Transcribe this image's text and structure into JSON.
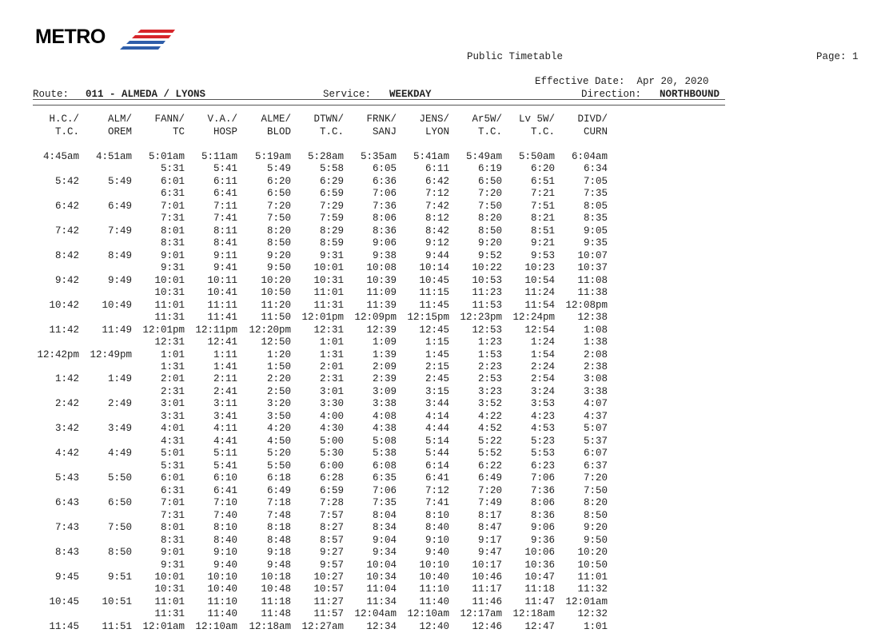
{
  "logo": {
    "text": "METRO"
  },
  "header": {
    "title": "Public Timetable",
    "page_label": "Page:",
    "page_number": "1",
    "effective_label": "Effective Date:",
    "effective_date": "Apr 20, 2020",
    "route_label": "Route:",
    "route_value": "011 - ALMEDA / LYONS",
    "service_label": "Service:",
    "service_value": "WEEKDAY",
    "direction_label": "Direction:",
    "direction_value": "NORTHBOUND"
  },
  "columns": [
    {
      "l1": "H.C./",
      "l2": "T.C."
    },
    {
      "l1": "ALM/",
      "l2": "OREM"
    },
    {
      "l1": "FANN/",
      "l2": "TC"
    },
    {
      "l1": "V.A./",
      "l2": "HOSP"
    },
    {
      "l1": "ALME/",
      "l2": "BLOD"
    },
    {
      "l1": "DTWN/",
      "l2": "T.C."
    },
    {
      "l1": "FRNK/",
      "l2": "SANJ"
    },
    {
      "l1": "JENS/",
      "l2": "LYON"
    },
    {
      "l1": "Ar5W/",
      "l2": "T.C."
    },
    {
      "l1": "Lv 5W/",
      "l2": "T.C."
    },
    {
      "l1": "DIVD/",
      "l2": "CURN"
    }
  ],
  "rows": [
    [
      "4:45am",
      "4:51am",
      "5:01am",
      "5:11am",
      "5:19am",
      "5:28am",
      "5:35am",
      "5:41am",
      "5:49am",
      "5:50am",
      "6:04am"
    ],
    [
      "",
      "",
      "5:31",
      "5:41",
      "5:49",
      "5:58",
      "6:05",
      "6:11",
      "6:19",
      "6:20",
      "6:34"
    ],
    [
      "5:42",
      "5:49",
      "6:01",
      "6:11",
      "6:20",
      "6:29",
      "6:36",
      "6:42",
      "6:50",
      "6:51",
      "7:05"
    ],
    [
      "",
      "",
      "6:31",
      "6:41",
      "6:50",
      "6:59",
      "7:06",
      "7:12",
      "7:20",
      "7:21",
      "7:35"
    ],
    [
      "6:42",
      "6:49",
      "7:01",
      "7:11",
      "7:20",
      "7:29",
      "7:36",
      "7:42",
      "7:50",
      "7:51",
      "8:05"
    ],
    [
      "",
      "",
      "7:31",
      "7:41",
      "7:50",
      "7:59",
      "8:06",
      "8:12",
      "8:20",
      "8:21",
      "8:35"
    ],
    [
      "7:42",
      "7:49",
      "8:01",
      "8:11",
      "8:20",
      "8:29",
      "8:36",
      "8:42",
      "8:50",
      "8:51",
      "9:05"
    ],
    [
      "",
      "",
      "8:31",
      "8:41",
      "8:50",
      "8:59",
      "9:06",
      "9:12",
      "9:20",
      "9:21",
      "9:35"
    ],
    [
      "8:42",
      "8:49",
      "9:01",
      "9:11",
      "9:20",
      "9:31",
      "9:38",
      "9:44",
      "9:52",
      "9:53",
      "10:07"
    ],
    [
      "",
      "",
      "9:31",
      "9:41",
      "9:50",
      "10:01",
      "10:08",
      "10:14",
      "10:22",
      "10:23",
      "10:37"
    ],
    [
      "9:42",
      "9:49",
      "10:01",
      "10:11",
      "10:20",
      "10:31",
      "10:39",
      "10:45",
      "10:53",
      "10:54",
      "11:08"
    ],
    [
      "",
      "",
      "10:31",
      "10:41",
      "10:50",
      "11:01",
      "11:09",
      "11:15",
      "11:23",
      "11:24",
      "11:38"
    ],
    [
      "10:42",
      "10:49",
      "11:01",
      "11:11",
      "11:20",
      "11:31",
      "11:39",
      "11:45",
      "11:53",
      "11:54",
      "12:08pm"
    ],
    [
      "",
      "",
      "11:31",
      "11:41",
      "11:50",
      "12:01pm",
      "12:09pm",
      "12:15pm",
      "12:23pm",
      "12:24pm",
      "12:38"
    ],
    [
      "11:42",
      "11:49",
      "12:01pm",
      "12:11pm",
      "12:20pm",
      "12:31",
      "12:39",
      "12:45",
      "12:53",
      "12:54",
      "1:08"
    ],
    [
      "",
      "",
      "12:31",
      "12:41",
      "12:50",
      "1:01",
      "1:09",
      "1:15",
      "1:23",
      "1:24",
      "1:38"
    ],
    [
      "12:42pm",
      "12:49pm",
      "1:01",
      "1:11",
      "1:20",
      "1:31",
      "1:39",
      "1:45",
      "1:53",
      "1:54",
      "2:08"
    ],
    [
      "",
      "",
      "1:31",
      "1:41",
      "1:50",
      "2:01",
      "2:09",
      "2:15",
      "2:23",
      "2:24",
      "2:38"
    ],
    [
      "1:42",
      "1:49",
      "2:01",
      "2:11",
      "2:20",
      "2:31",
      "2:39",
      "2:45",
      "2:53",
      "2:54",
      "3:08"
    ],
    [
      "",
      "",
      "2:31",
      "2:41",
      "2:50",
      "3:01",
      "3:09",
      "3:15",
      "3:23",
      "3:24",
      "3:38"
    ],
    [
      "2:42",
      "2:49",
      "3:01",
      "3:11",
      "3:20",
      "3:30",
      "3:38",
      "3:44",
      "3:52",
      "3:53",
      "4:07"
    ],
    [
      "",
      "",
      "3:31",
      "3:41",
      "3:50",
      "4:00",
      "4:08",
      "4:14",
      "4:22",
      "4:23",
      "4:37"
    ],
    [
      "3:42",
      "3:49",
      "4:01",
      "4:11",
      "4:20",
      "4:30",
      "4:38",
      "4:44",
      "4:52",
      "4:53",
      "5:07"
    ],
    [
      "",
      "",
      "4:31",
      "4:41",
      "4:50",
      "5:00",
      "5:08",
      "5:14",
      "5:22",
      "5:23",
      "5:37"
    ],
    [
      "4:42",
      "4:49",
      "5:01",
      "5:11",
      "5:20",
      "5:30",
      "5:38",
      "5:44",
      "5:52",
      "5:53",
      "6:07"
    ],
    [
      "",
      "",
      "5:31",
      "5:41",
      "5:50",
      "6:00",
      "6:08",
      "6:14",
      "6:22",
      "6:23",
      "6:37"
    ],
    [
      "5:43",
      "5:50",
      "6:01",
      "6:10",
      "6:18",
      "6:28",
      "6:35",
      "6:41",
      "6:49",
      "7:06",
      "7:20"
    ],
    [
      "",
      "",
      "6:31",
      "6:41",
      "6:49",
      "6:59",
      "7:06",
      "7:12",
      "7:20",
      "7:36",
      "7:50"
    ],
    [
      "6:43",
      "6:50",
      "7:01",
      "7:10",
      "7:18",
      "7:28",
      "7:35",
      "7:41",
      "7:49",
      "8:06",
      "8:20"
    ],
    [
      "",
      "",
      "7:31",
      "7:40",
      "7:48",
      "7:57",
      "8:04",
      "8:10",
      "8:17",
      "8:36",
      "8:50"
    ],
    [
      "7:43",
      "7:50",
      "8:01",
      "8:10",
      "8:18",
      "8:27",
      "8:34",
      "8:40",
      "8:47",
      "9:06",
      "9:20"
    ],
    [
      "",
      "",
      "8:31",
      "8:40",
      "8:48",
      "8:57",
      "9:04",
      "9:10",
      "9:17",
      "9:36",
      "9:50"
    ],
    [
      "8:43",
      "8:50",
      "9:01",
      "9:10",
      "9:18",
      "9:27",
      "9:34",
      "9:40",
      "9:47",
      "10:06",
      "10:20"
    ],
    [
      "",
      "",
      "9:31",
      "9:40",
      "9:48",
      "9:57",
      "10:04",
      "10:10",
      "10:17",
      "10:36",
      "10:50"
    ],
    [
      "9:45",
      "9:51",
      "10:01",
      "10:10",
      "10:18",
      "10:27",
      "10:34",
      "10:40",
      "10:46",
      "10:47",
      "11:01"
    ],
    [
      "",
      "",
      "10:31",
      "10:40",
      "10:48",
      "10:57",
      "11:04",
      "11:10",
      "11:17",
      "11:18",
      "11:32"
    ],
    [
      "10:45",
      "10:51",
      "11:01",
      "11:10",
      "11:18",
      "11:27",
      "11:34",
      "11:40",
      "11:46",
      "11:47",
      "12:01am"
    ],
    [
      "",
      "",
      "11:31",
      "11:40",
      "11:48",
      "11:57",
      "12:04am",
      "12:10am",
      "12:17am",
      "12:18am",
      "12:32"
    ],
    [
      "11:45",
      "11:51",
      "12:01am",
      "12:10am",
      "12:18am",
      "12:27am",
      "12:34",
      "12:40",
      "12:46",
      "12:47",
      "1:01"
    ]
  ]
}
